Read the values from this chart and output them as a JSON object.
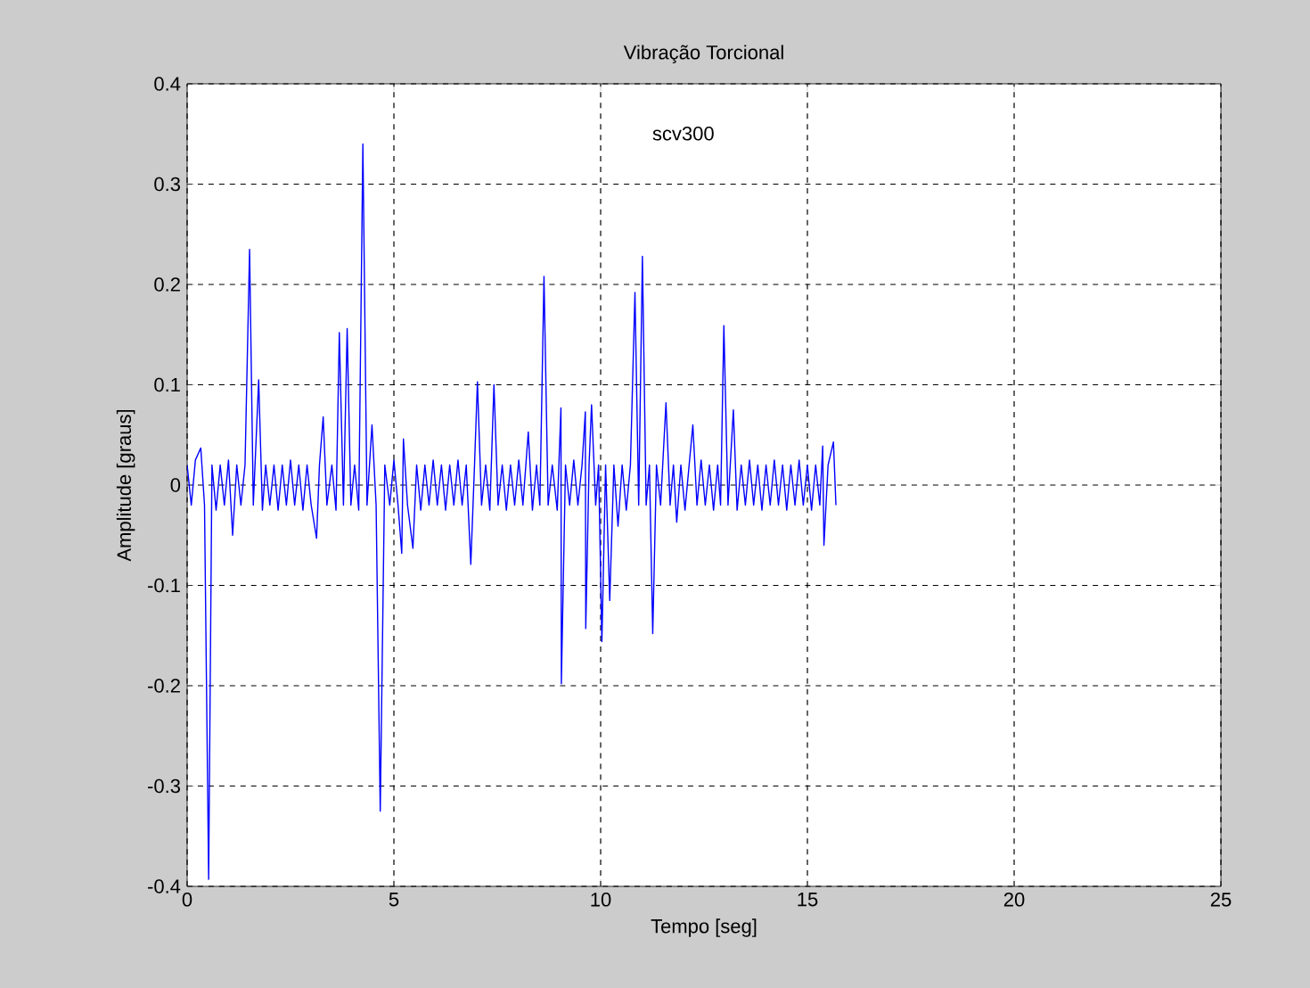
{
  "chart_data": {
    "type": "line",
    "title": "Vibração Torcional",
    "xlabel": "Tempo [seg]",
    "ylabel": "Amplitude [graus]",
    "annotations": [
      "scv300"
    ],
    "xlim": [
      0,
      25
    ],
    "xticks": [
      0,
      5,
      10,
      15,
      20,
      25
    ],
    "ylim": [
      -0.4,
      0.4
    ],
    "yticks": [
      -0.4,
      -0.3,
      -0.2,
      -0.1,
      0,
      0.1,
      0.2,
      0.3,
      0.4
    ],
    "grid": true,
    "series": [
      {
        "color": "#0000ff",
        "x": [
          0.0,
          0.1,
          0.2,
          0.33,
          0.42,
          0.52,
          0.6,
          0.7,
          0.8,
          0.9,
          1.0,
          1.1,
          1.2,
          1.3,
          1.4,
          1.51,
          1.6,
          1.73,
          1.82,
          1.9,
          2.0,
          2.1,
          2.2,
          2.3,
          2.4,
          2.5,
          2.6,
          2.7,
          2.8,
          2.9,
          3.0,
          3.13,
          3.2,
          3.29,
          3.38,
          3.5,
          3.6,
          3.68,
          3.78,
          3.87,
          3.96,
          4.05,
          4.15,
          4.25,
          4.35,
          4.47,
          4.57,
          4.67,
          4.78,
          4.9,
          5.0,
          5.1,
          5.19,
          5.23,
          5.33,
          5.46,
          5.55,
          5.65,
          5.75,
          5.85,
          5.95,
          6.05,
          6.15,
          6.25,
          6.35,
          6.45,
          6.55,
          6.65,
          6.75,
          6.86,
          6.95,
          7.02,
          7.12,
          7.22,
          7.32,
          7.42,
          7.52,
          7.62,
          7.72,
          7.82,
          7.92,
          8.02,
          8.12,
          8.25,
          8.35,
          8.45,
          8.53,
          8.63,
          8.73,
          8.83,
          8.95,
          9.04,
          9.05,
          9.15,
          9.25,
          9.35,
          9.45,
          9.55,
          9.63,
          9.64,
          9.72,
          9.78,
          9.88,
          9.95,
          10.03,
          10.12,
          10.22,
          10.32,
          10.42,
          10.52,
          10.62,
          10.72,
          10.83,
          10.92,
          11.01,
          11.1,
          11.18,
          11.26,
          11.35,
          11.45,
          11.58,
          11.68,
          11.76,
          11.84,
          11.94,
          12.04,
          12.14,
          12.23,
          12.33,
          12.43,
          12.53,
          12.63,
          12.73,
          12.83,
          12.9,
          12.98,
          13.08,
          13.21,
          13.3,
          13.4,
          13.5,
          13.6,
          13.7,
          13.8,
          13.9,
          14.0,
          14.1,
          14.2,
          14.3,
          14.4,
          14.5,
          14.6,
          14.7,
          14.8,
          14.9,
          15.0,
          15.1,
          15.2,
          15.3,
          15.37,
          15.4,
          15.5,
          15.63,
          15.69
        ],
        "values": [
          0.02,
          -0.02,
          0.025,
          0.037,
          -0.02,
          -0.393,
          0.02,
          -0.025,
          0.02,
          -0.02,
          0.025,
          -0.05,
          0.02,
          -0.02,
          0.02,
          0.235,
          -0.02,
          0.105,
          -0.025,
          0.02,
          -0.02,
          0.02,
          -0.025,
          0.02,
          -0.02,
          0.025,
          -0.02,
          0.02,
          -0.025,
          0.02,
          -0.02,
          -0.053,
          0.02,
          0.068,
          -0.02,
          0.02,
          -0.025,
          0.152,
          -0.02,
          0.156,
          -0.02,
          0.02,
          -0.025,
          0.34,
          -0.02,
          0.06,
          -0.02,
          -0.325,
          0.02,
          -0.02,
          0.025,
          -0.02,
          -0.068,
          0.046,
          -0.02,
          -0.063,
          0.02,
          -0.025,
          0.02,
          -0.02,
          0.025,
          -0.02,
          0.02,
          -0.025,
          0.02,
          -0.02,
          0.025,
          -0.02,
          0.02,
          -0.079,
          0.02,
          0.103,
          -0.02,
          0.02,
          -0.025,
          0.1,
          -0.02,
          0.02,
          -0.025,
          0.02,
          -0.02,
          0.025,
          -0.02,
          0.053,
          -0.025,
          0.02,
          -0.02,
          0.208,
          -0.02,
          0.02,
          -0.025,
          0.077,
          -0.198,
          0.02,
          -0.02,
          0.025,
          -0.02,
          0.02,
          0.073,
          -0.143,
          0.02,
          0.08,
          -0.02,
          0.02,
          -0.156,
          0.02,
          -0.115,
          0.02,
          -0.041,
          0.02,
          -0.025,
          0.02,
          0.192,
          -0.02,
          0.228,
          -0.02,
          0.02,
          -0.148,
          0.02,
          -0.02,
          0.082,
          -0.02,
          0.02,
          -0.037,
          0.02,
          -0.025,
          0.02,
          0.06,
          -0.02,
          0.025,
          -0.02,
          0.02,
          -0.025,
          0.02,
          -0.02,
          0.159,
          -0.02,
          0.075,
          -0.025,
          0.02,
          -0.02,
          0.025,
          -0.02,
          0.02,
          -0.025,
          0.02,
          -0.02,
          0.025,
          -0.02,
          0.02,
          -0.025,
          0.02,
          -0.02,
          0.025,
          -0.02,
          0.02,
          -0.025,
          0.02,
          -0.02,
          0.039,
          -0.06,
          0.02,
          0.043,
          -0.02
        ]
      }
    ]
  }
}
